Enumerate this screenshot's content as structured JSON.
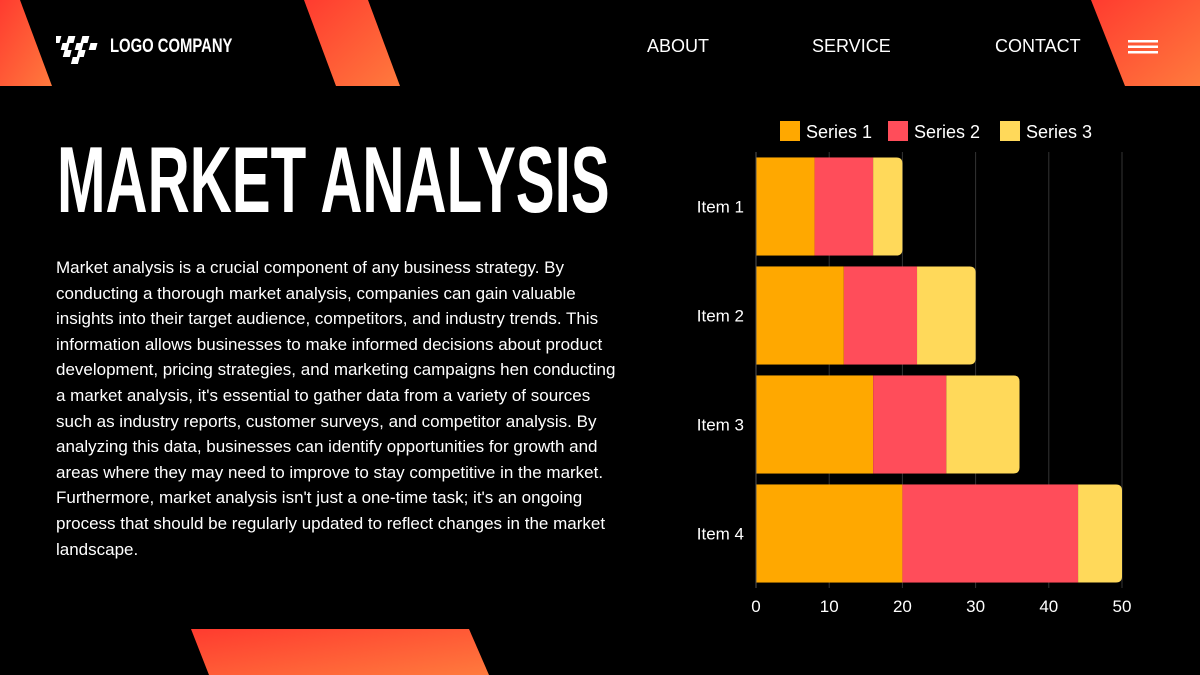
{
  "header": {
    "logo_text": "LOGO COMPANY",
    "nav": [
      {
        "label": "ABOUT"
      },
      {
        "label": "SERVICE"
      },
      {
        "label": "CONTACT"
      }
    ]
  },
  "main": {
    "title": "MARKET ANALYSIS",
    "paragraphs": [
      "Market analysis is a crucial component of any business strategy. By conducting a thorough market analysis, companies can gain valuable insights into their target audience, competitors, and industry trends. This information allows businesses to make informed decisions about product development, pricing strategies, and marketing campaigns hen conducting a market analysis, it's essential to gather data from a variety of sources such as industry reports, customer surveys, and competitor analysis. By analyzing this data, businesses can identify opportunities for growth and areas where they may need to improve to stay competitive in the market.",
      "Furthermore, market analysis isn't just a one-time task; it's an ongoing process that should be regularly updated to reflect changes in the market landscape."
    ]
  },
  "colors": {
    "accent_orange": "#ff6a33",
    "accent_red": "#ff3b2f",
    "background": "#000000"
  },
  "icons": {
    "logo": "checkered-flag-icon",
    "menu": "hamburger-menu-icon"
  },
  "chart_data": {
    "type": "bar",
    "orientation": "horizontal",
    "stacked": true,
    "categories": [
      "Item 1",
      "Item 2",
      "Item 3",
      "Item 4"
    ],
    "series": [
      {
        "name": "Series 1",
        "values": [
          8,
          12,
          16,
          20
        ],
        "color": "#ffa800"
      },
      {
        "name": "Series 2",
        "values": [
          8,
          10,
          10,
          24
        ],
        "color": "#ff4d5a"
      },
      {
        "name": "Series 3",
        "values": [
          4,
          8,
          10,
          6
        ],
        "color": "#ffd95a"
      }
    ],
    "xlim": [
      0,
      50
    ],
    "xticks": [
      0,
      10,
      20,
      30,
      40,
      50
    ],
    "grid": true,
    "legend_position": "top"
  }
}
